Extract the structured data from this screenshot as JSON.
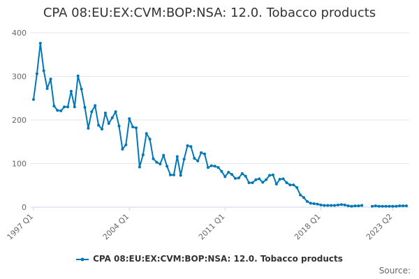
{
  "chart_data": {
    "type": "line",
    "title": "CPA 08:EU:EX:CVM:BOP:NSA: 12.0. Tobacco products",
    "xlabel": "",
    "ylabel": "",
    "ylim": [
      0,
      400
    ],
    "yticks": [
      0,
      100,
      200,
      300,
      400
    ],
    "xticks": [
      "1997 Q1",
      "2004 Q1",
      "2011 Q1",
      "2018 Q1",
      "2023 Q2"
    ],
    "x_start": "1997 Q1",
    "x_end": "2023 Q2",
    "grid": true,
    "legend_position": "bottom",
    "color": "#0077b6",
    "series": [
      {
        "name": "CPA 08:EU:EX:CVM:BOP:NSA: 12.0. Tobacco products",
        "values": [
          247,
          306,
          376,
          313,
          272,
          294,
          232,
          222,
          221,
          230,
          230,
          266,
          230,
          301,
          271,
          229,
          181,
          219,
          233,
          188,
          179,
          216,
          192,
          205,
          219,
          186,
          133,
          143,
          203,
          184,
          182,
          92,
          120,
          169,
          156,
          111,
          103,
          99,
          119,
          94,
          74,
          74,
          116,
          73,
          110,
          141,
          139,
          112,
          106,
          125,
          122,
          91,
          95,
          94,
          91,
          82,
          70,
          80,
          75,
          66,
          67,
          77,
          71,
          56,
          56,
          63,
          65,
          57,
          63,
          73,
          74,
          53,
          64,
          65,
          56,
          51,
          51,
          45,
          28,
          22,
          13,
          9,
          8,
          7,
          5,
          4,
          4,
          4,
          4,
          5,
          6,
          5,
          3,
          2,
          3,
          3,
          4,
          null,
          null,
          2,
          3,
          2,
          2,
          2,
          2,
          2,
          2,
          3,
          3,
          3
        ]
      }
    ]
  },
  "legend": {
    "label": "CPA 08:EU:EX:CVM:BOP:NSA: 12.0. Tobacco products"
  },
  "footer": {
    "source": "Source:"
  }
}
